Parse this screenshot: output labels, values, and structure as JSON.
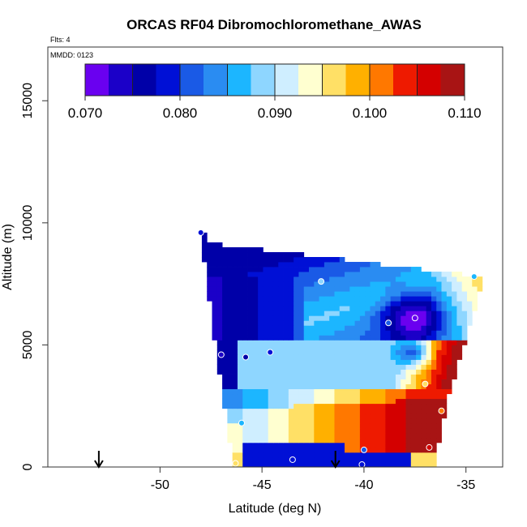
{
  "chart_data": {
    "type": "heatmap",
    "title": "ORCAS RF04 Dibromochloromethane_AWAS",
    "flights_label": "Flts: 4",
    "date_label": "MMDD: 0123",
    "xlabel": "Latitude (deg N)",
    "ylabel": "Altitude (m)",
    "xlim": [
      -55.5,
      -33.2
    ],
    "ylim": [
      0,
      17200
    ],
    "xticks": [
      -50,
      -45,
      -40,
      -35
    ],
    "xtick_labels": [
      "-50",
      "-45",
      "-40",
      "-35"
    ],
    "yticks": [
      0,
      5000,
      10000,
      15000
    ],
    "ytick_labels": [
      "0",
      "5000",
      "10000",
      "15000"
    ],
    "colorbar": {
      "range": [
        0.07,
        0.11
      ],
      "ticks": [
        0.07,
        0.08,
        0.09,
        0.1,
        0.11
      ],
      "tick_labels": [
        "0.070",
        "0.080",
        "0.090",
        "0.100",
        "0.110"
      ],
      "colors": [
        "#6a00f0",
        "#1b00c8",
        "#0000a8",
        "#0010d6",
        "#1a5ae6",
        "#2a8cf2",
        "#1cb6ff",
        "#8ed6ff",
        "#cfeeff",
        "#ffffd0",
        "#ffe066",
        "#ffb000",
        "#ff7800",
        "#ee1a00",
        "#d40000",
        "#a81414"
      ]
    },
    "arrows_lat": [
      -53.0,
      -41.4
    ],
    "samples": [
      {
        "lat": -48.0,
        "alt": 9600,
        "value": 0.08
      },
      {
        "lat": -42.1,
        "alt": 7600,
        "value": 0.089
      },
      {
        "lat": -34.6,
        "alt": 7800,
        "value": 0.087
      },
      {
        "lat": -37.5,
        "alt": 6100,
        "value": 0.072
      },
      {
        "lat": -38.8,
        "alt": 5900,
        "value": 0.081
      },
      {
        "lat": -44.6,
        "alt": 4700,
        "value": 0.078
      },
      {
        "lat": -47.0,
        "alt": 4600,
        "value": 0.073
      },
      {
        "lat": -45.8,
        "alt": 4500,
        "value": 0.076
      },
      {
        "lat": -37.0,
        "alt": 3400,
        "value": 0.095
      },
      {
        "lat": -36.2,
        "alt": 2300,
        "value": 0.1
      },
      {
        "lat": -46.0,
        "alt": 1800,
        "value": 0.087
      },
      {
        "lat": -36.8,
        "alt": 800,
        "value": 0.107
      },
      {
        "lat": -40.0,
        "alt": 700,
        "value": 0.081
      },
      {
        "lat": -43.5,
        "alt": 300,
        "value": 0.078
      },
      {
        "lat": -46.3,
        "alt": 150,
        "value": 0.096
      },
      {
        "lat": -40.1,
        "alt": 100,
        "value": 0.079
      }
    ]
  }
}
